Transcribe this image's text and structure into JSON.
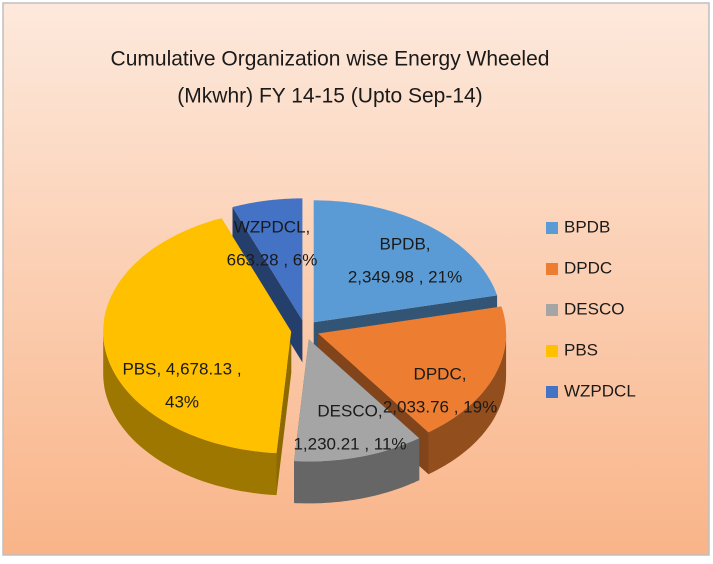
{
  "chart_data": {
    "type": "pie3d",
    "title": [
      "Cumulative  Organization wise  Energy  Wheeled",
      "(Mkwhr) FY 14-15 (Upto  Sep-14)"
    ],
    "categories": [
      "BPDB",
      "DPDC",
      "DESCO",
      "PBS",
      "WZPDCL"
    ],
    "values": [
      2349.98,
      2033.76,
      1230.21,
      4678.13,
      663.28
    ],
    "value_labels": [
      [
        "BPDB,",
        "2,349.98 , 21%"
      ],
      [
        "DPDC,",
        "2,033.76 , 19%"
      ],
      [
        "DESCO,",
        "1,230.21 , 11%"
      ],
      [
        "PBS,  4,678.13 ,",
        "43%"
      ],
      [
        "WZPDCL,",
        "663.28 , 6%"
      ]
    ],
    "colors": [
      "#5b9bd5",
      "#ed7d31",
      "#a5a5a5",
      "#ffc000",
      "#4472c4"
    ],
    "legend": "right"
  }
}
